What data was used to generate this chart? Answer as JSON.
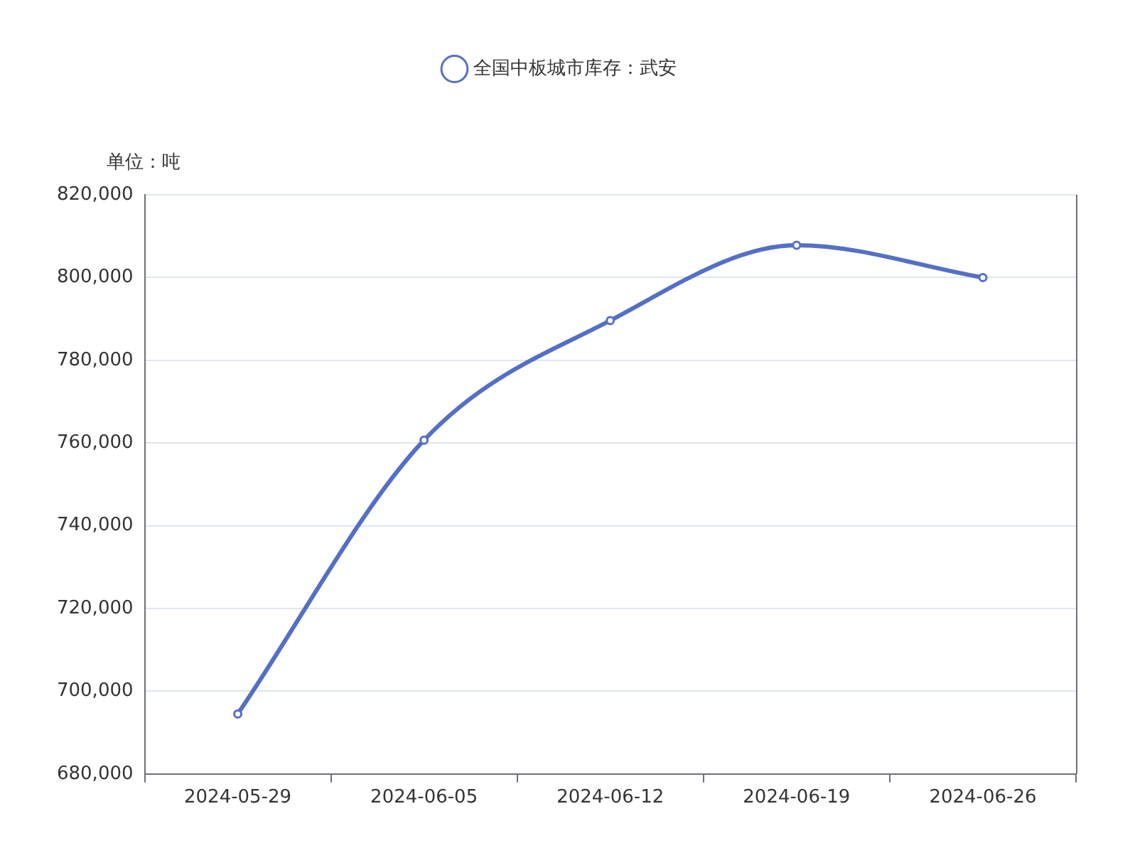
{
  "chart_data": {
    "type": "line",
    "ylabel": "单位：吨",
    "categories": [
      "2024-05-29",
      "2024-06-05",
      "2024-06-12",
      "2024-06-19",
      "2024-06-26"
    ],
    "series": [
      {
        "name": "全国中板城市库存：武安",
        "color": "#5470c6",
        "values": [
          694500,
          760700,
          789600,
          807800,
          800000
        ]
      }
    ],
    "ylim": [
      680000,
      820000
    ],
    "yticks": [
      {
        "value": 680000,
        "label": "680,000"
      },
      {
        "value": 700000,
        "label": "700,000"
      },
      {
        "value": 720000,
        "label": "720,000"
      },
      {
        "value": 740000,
        "label": "740,000"
      },
      {
        "value": 760000,
        "label": "760,000"
      },
      {
        "value": 780000,
        "label": "780,000"
      },
      {
        "value": 800000,
        "label": "800,000"
      },
      {
        "value": 820000,
        "label": "820,000"
      }
    ],
    "grid": "y",
    "legend": "top",
    "marker": "circle",
    "line_style": "solid"
  }
}
